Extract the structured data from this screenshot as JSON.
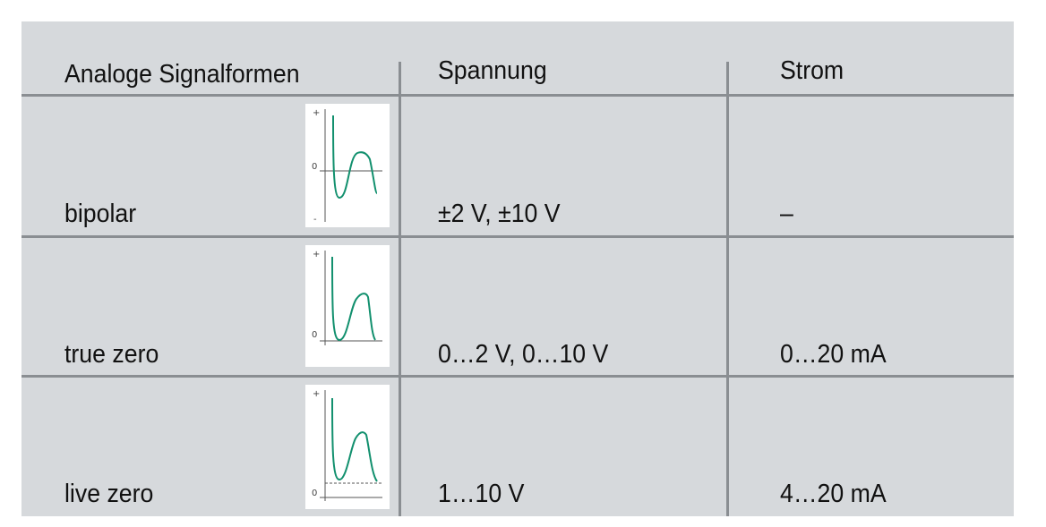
{
  "table": {
    "headers": [
      "Analoge Signalformen",
      "Spannung",
      "Strom"
    ],
    "rows": [
      {
        "signal": "bipolar",
        "spannung": "±2 V, ±10 V",
        "strom": "–",
        "graph": {
          "top_label": "+",
          "zero_label": "0",
          "bottom_label": "-"
        }
      },
      {
        "signal": "true zero",
        "spannung": "0…2 V, 0…10 V",
        "strom": "0…20 mA",
        "graph": {
          "top_label": "+",
          "zero_label": "0"
        }
      },
      {
        "signal": "live zero",
        "spannung": "1…10 V",
        "strom": "4…20 mA",
        "graph": {
          "top_label": "+",
          "zero_label": "0"
        }
      }
    ]
  },
  "colors": {
    "background": "#d6d9dc",
    "grid": "#8a8e92",
    "curve": "#12906e",
    "axis": "#555555"
  }
}
